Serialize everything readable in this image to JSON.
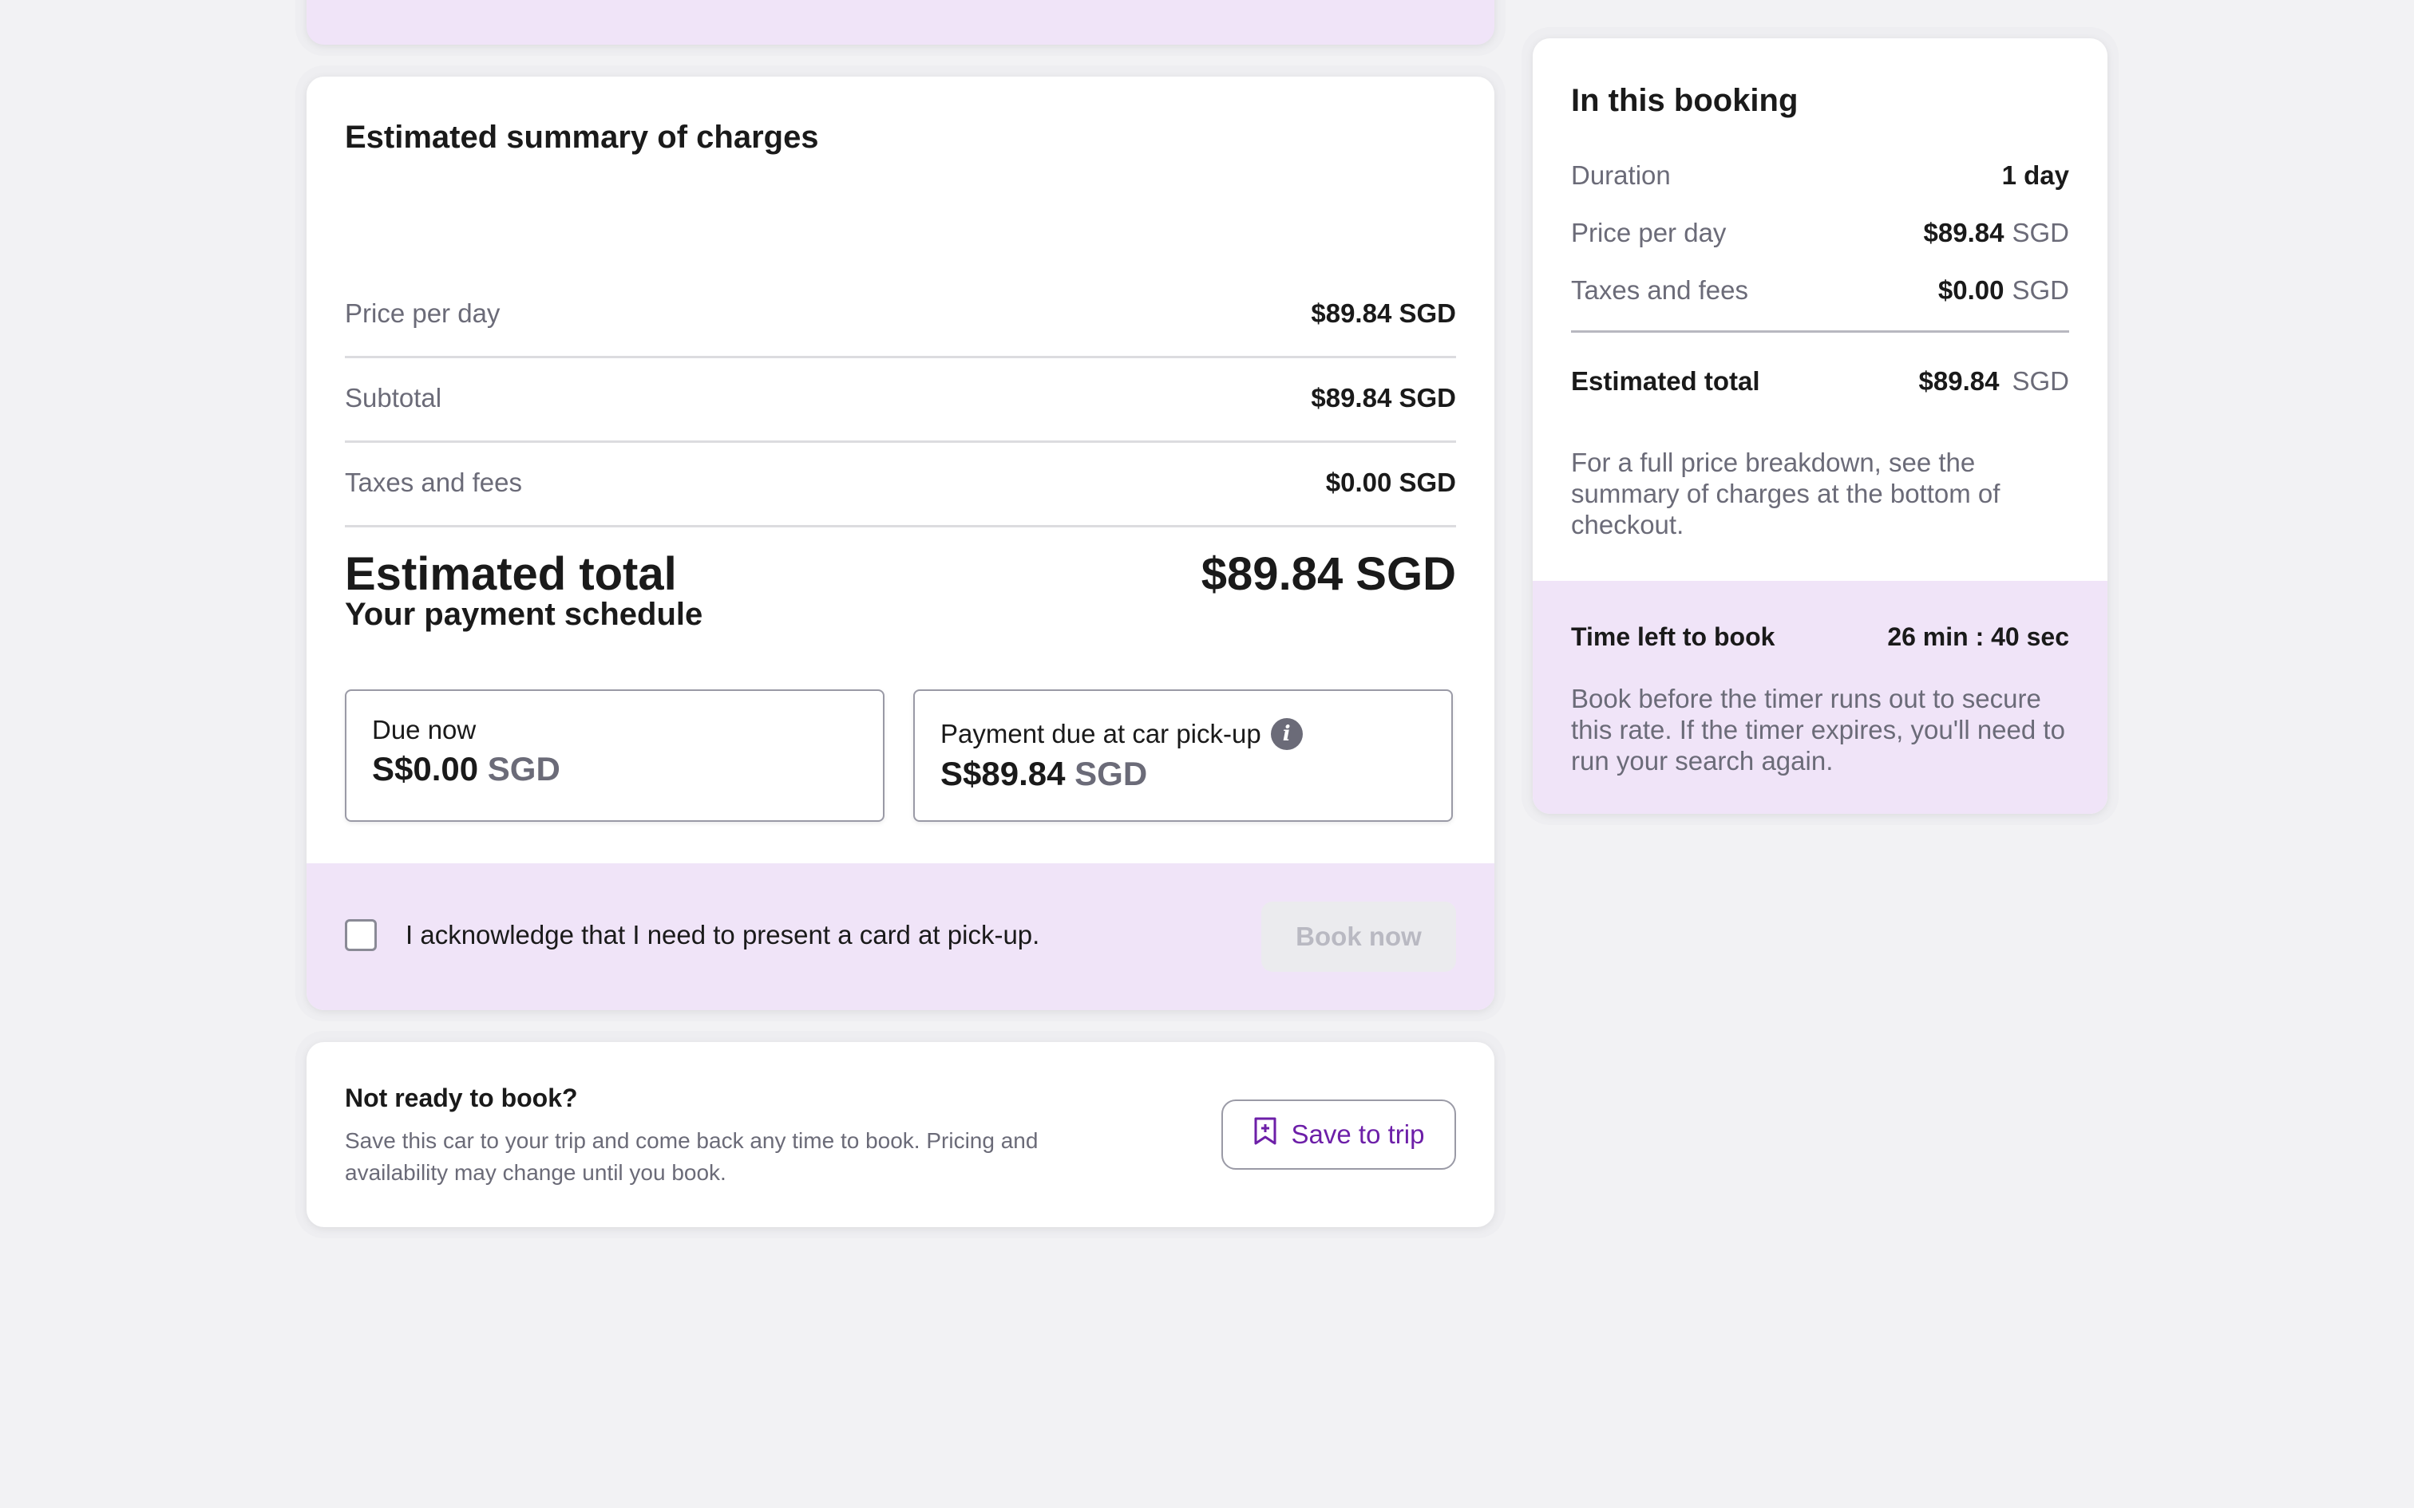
{
  "summary": {
    "title": "Estimated summary of charges",
    "rows": [
      {
        "label": "Price per day",
        "value": "$89.84 SGD"
      },
      {
        "label": "Subtotal",
        "value": "$89.84 SGD"
      },
      {
        "label": "Taxes and fees",
        "value": "$0.00 SGD"
      }
    ],
    "total_label": "Estimated total",
    "total_value": "$89.84 SGD"
  },
  "schedule": {
    "title": "Your payment schedule",
    "due_now_label": "Due now",
    "due_now_amount": "S$0.00",
    "due_now_currency": "SGD",
    "pickup_label": "Payment due at car pick-up",
    "pickup_amount": "S$89.84",
    "pickup_currency": "SGD",
    "info_glyph": "i"
  },
  "acknowledge": {
    "text": "I acknowledge that I need to present a card at pick-up.",
    "checked": false,
    "book_label": "Book now"
  },
  "not_ready": {
    "title": "Not ready to book?",
    "description": "Save this car to your trip and come back any time to book. Pricing and availability may change until you book.",
    "save_label": "Save to trip",
    "icon": "bookmark-plus-icon"
  },
  "side": {
    "title": "In this booking",
    "duration_label": "Duration",
    "duration_value": "1 day",
    "price_label": "Price per day",
    "price_value": "$89.84",
    "price_currency": "SGD",
    "taxes_label": "Taxes and fees",
    "taxes_value": "$0.00",
    "taxes_currency": "SGD",
    "total_label": "Estimated total",
    "total_value": "$89.84",
    "total_currency": "SGD",
    "note": "For a full price breakdown, see the summary of charges at the bottom of checkout.",
    "timer_label": "Time left to book",
    "timer_value": "26 min : 40 sec",
    "timer_note": "Book before the timer runs out to secure this rate. If the timer expires, you'll need to run your search again."
  },
  "colors": {
    "accent": "#6d1fa8",
    "highlight_bg": "#f0e4f8",
    "page_bg": "#f2f2f4"
  }
}
